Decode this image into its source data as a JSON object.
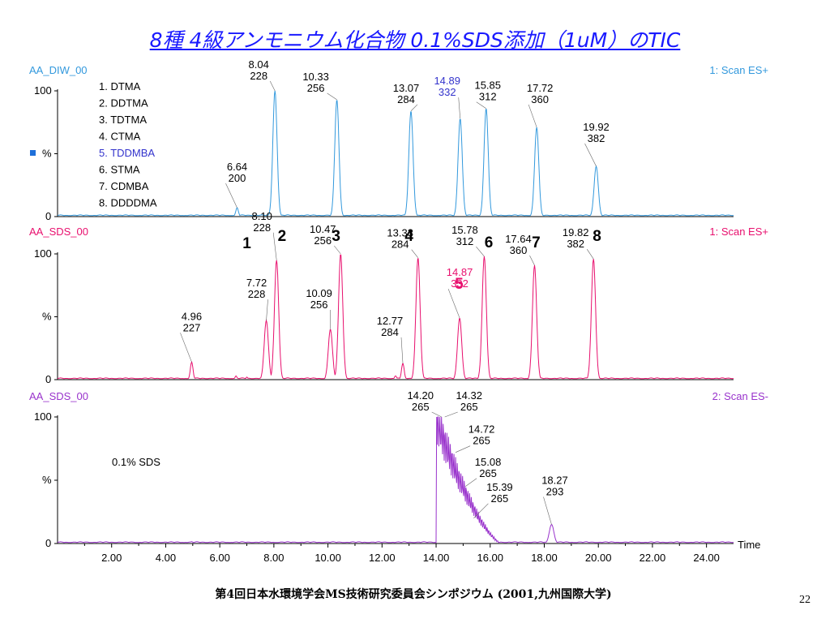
{
  "slide_title": "8種 4級アンモニウム化合物 0.1%SDS添加（1uM）のTIC",
  "footer": "第4回日本水環境学会MS技術研究委員会シンポジウム (2001,九州国際大学)",
  "page_number": "22",
  "colors": {
    "panel1": "#3399dd",
    "panel2": "#e8106e",
    "panel3": "#9933cc",
    "title": "#1a1aff",
    "compound5": "#3333cc"
  },
  "chart_data": [
    {
      "type": "line",
      "sample": "AA_DIW_00",
      "scan": "1: Scan ES+",
      "y_ticks": [
        "100",
        "%",
        "0"
      ],
      "compound_list": [
        "1. DTMA",
        "2. DDTMA",
        "3. TDTMA",
        "4. CTMA",
        "5. TDDMBA",
        "6. STMA",
        "7. CDMBA",
        "8. DDDDMA"
      ],
      "xlim": [
        0,
        25
      ],
      "ylim": [
        0,
        100
      ],
      "peaks": [
        {
          "rt": 6.64,
          "mz": "200",
          "height": 7,
          "label": "6.64\n200"
        },
        {
          "rt": 8.04,
          "mz": "228",
          "height": 100,
          "label": "8.04\n228"
        },
        {
          "rt": 10.33,
          "mz": "256",
          "height": 93,
          "label": "10.33\n256"
        },
        {
          "rt": 13.07,
          "mz": "284",
          "height": 84,
          "label": "13.07\n284"
        },
        {
          "rt": 14.89,
          "mz": "332",
          "height": 78,
          "label": "14.89\n332"
        },
        {
          "rt": 15.85,
          "mz": "312",
          "height": 86,
          "label": "15.85\n312"
        },
        {
          "rt": 17.72,
          "mz": "360",
          "height": 71,
          "label": "17.72\n360"
        },
        {
          "rt": 19.92,
          "mz": "382",
          "height": 40,
          "label": "19.92\n382"
        }
      ]
    },
    {
      "type": "line",
      "sample": "AA_SDS_00",
      "scan": "1: Scan ES+",
      "y_ticks": [
        "100",
        "%",
        "0"
      ],
      "peak_numbers": [
        {
          "n": "1",
          "rt": 7.0
        },
        {
          "n": "2",
          "rt": 8.3
        },
        {
          "n": "3",
          "rt": 10.3
        },
        {
          "n": "4",
          "rt": 13.0
        },
        {
          "n": "5",
          "rt": 14.85
        },
        {
          "n": "6",
          "rt": 15.95
        },
        {
          "n": "7",
          "rt": 17.7
        },
        {
          "n": "8",
          "rt": 19.95
        }
      ],
      "xlim": [
        0,
        25
      ],
      "ylim": [
        0,
        100
      ],
      "peaks": [
        {
          "rt": 4.96,
          "mz": "227",
          "height": 14,
          "label": "4.96\n227"
        },
        {
          "rt": 7.72,
          "mz": "228",
          "height": 47,
          "label": "7.72\n228"
        },
        {
          "rt": 8.1,
          "mz": "228",
          "height": 95,
          "label": "8.10\n228"
        },
        {
          "rt": 10.09,
          "mz": "256",
          "height": 40,
          "label": "10.09\n256"
        },
        {
          "rt": 10.47,
          "mz": "256",
          "height": 100,
          "label": "10.47\n256"
        },
        {
          "rt": 12.77,
          "mz": "284",
          "height": 13,
          "label": "12.77\n284"
        },
        {
          "rt": 13.33,
          "mz": "284",
          "height": 97,
          "label": "13.33\n284"
        },
        {
          "rt": 14.87,
          "mz": "332",
          "height": 49,
          "label": "14.87\n332"
        },
        {
          "rt": 15.78,
          "mz": "312",
          "height": 98,
          "label": "15.78\n312"
        },
        {
          "rt": 17.64,
          "mz": "360",
          "height": 91,
          "label": "17.64\n360"
        },
        {
          "rt": 19.82,
          "mz": "382",
          "height": 96,
          "label": "19.82\n382"
        }
      ]
    },
    {
      "type": "line",
      "sample": "AA_SDS_00",
      "scan": "2: Scan ES-",
      "y_ticks": [
        "100",
        "%",
        "0"
      ],
      "annotation": "0.1% SDS",
      "xlabel": "Time",
      "x_ticks": [
        "2.00",
        "4.00",
        "6.00",
        "8.00",
        "10.00",
        "12.00",
        "14.00",
        "16.00",
        "18.00",
        "20.00",
        "22.00",
        "24.00"
      ],
      "xlim": [
        0,
        25
      ],
      "ylim": [
        0,
        100
      ],
      "peaks": [
        {
          "rt": 14.2,
          "mz": "265",
          "height": 100,
          "label": "14.20\n265"
        },
        {
          "rt": 14.32,
          "mz": "265",
          "height": 100,
          "label": "14.32\n265"
        },
        {
          "rt": 14.72,
          "mz": "265",
          "height": 72,
          "label": "14.72\n265"
        },
        {
          "rt": 15.08,
          "mz": "265",
          "height": 45,
          "label": "15.08\n265"
        },
        {
          "rt": 15.39,
          "mz": "265",
          "height": 20,
          "label": "15.39\n265"
        },
        {
          "rt": 18.27,
          "mz": "293",
          "height": 15,
          "label": "18.27\n293"
        }
      ]
    }
  ]
}
